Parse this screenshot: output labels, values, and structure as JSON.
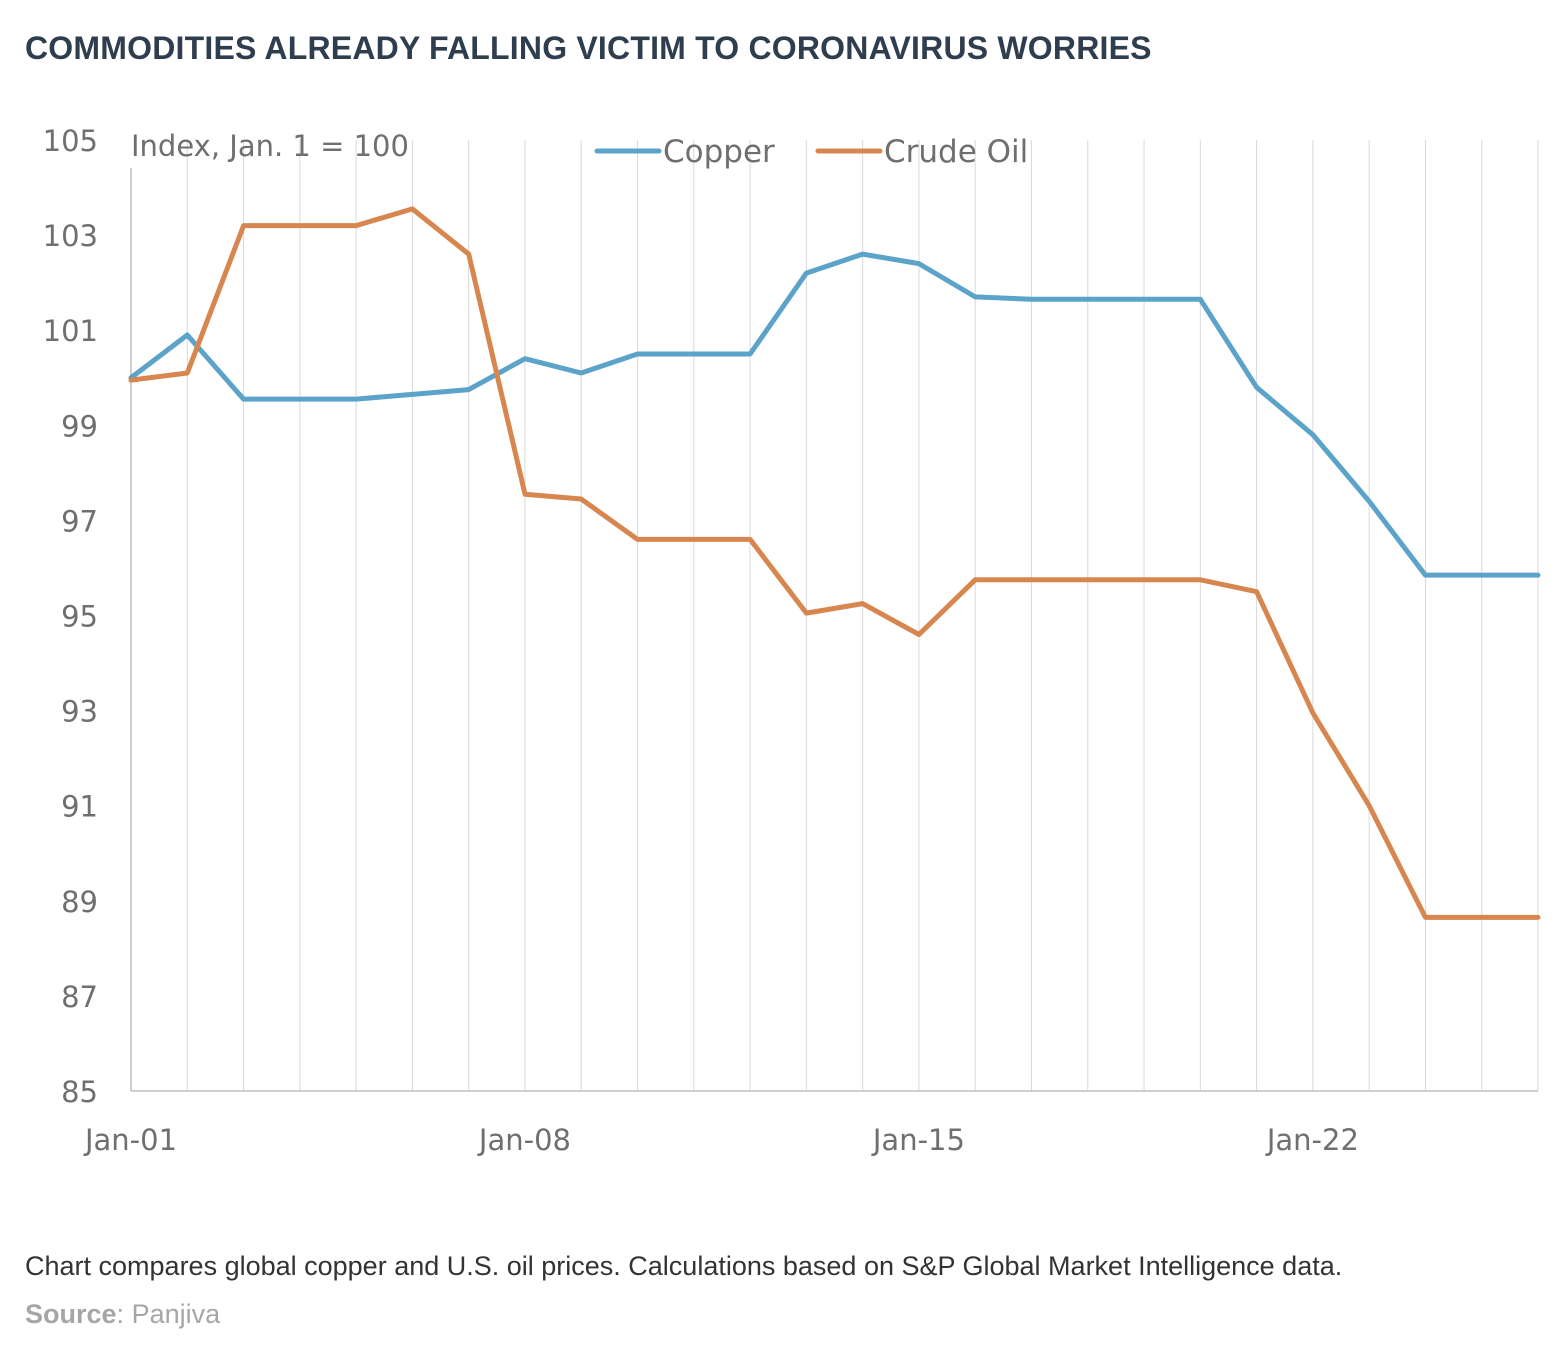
{
  "title": "COMMODITIES ALREADY FALLING VICTIM TO CORONAVIRUS WORRIES",
  "caption": "Chart compares global copper and U.S. oil prices. Calculations based on S&P Global Market Intelligence data.",
  "source": {
    "label": "Source",
    "separator": ": ",
    "value": "Panjiva"
  },
  "colors": {
    "copper": "#5ba3c9",
    "crude_oil": "#d8864f",
    "grid": "#d9d9d9",
    "axis": "#bfbfbf",
    "title": "#2f3e4e"
  },
  "chart_data": {
    "type": "line",
    "unit_label": "Index, Jan. 1 = 100",
    "ylim": [
      85,
      105
    ],
    "yticks": [
      85,
      87,
      89,
      91,
      93,
      95,
      97,
      99,
      101,
      103,
      105
    ],
    "x": [
      1,
      2,
      3,
      4,
      5,
      6,
      7,
      8,
      9,
      10,
      11,
      12,
      13,
      14,
      15,
      16,
      17,
      18,
      19,
      20,
      21,
      22,
      23,
      24,
      25,
      26
    ],
    "x_tick_labels": [
      {
        "day": 1,
        "label": "Jan-01"
      },
      {
        "day": 8,
        "label": "Jan-08"
      },
      {
        "day": 15,
        "label": "Jan-15"
      },
      {
        "day": 22,
        "label": "Jan-22"
      }
    ],
    "xlim": [
      1,
      26
    ],
    "grid": "vertical",
    "legend_position": "top",
    "series": [
      {
        "name": "Copper",
        "color": "#5ba3c9",
        "values": [
          100.0,
          100.9,
          99.55,
          99.55,
          99.55,
          99.65,
          99.75,
          100.4,
          100.1,
          100.5,
          100.5,
          100.5,
          102.2,
          102.6,
          102.4,
          101.7,
          101.65,
          101.65,
          101.65,
          101.65,
          99.8,
          98.8,
          97.4,
          95.85,
          95.85,
          95.85
        ]
      },
      {
        "name": "Crude Oil",
        "color": "#d8864f",
        "values": [
          99.95,
          100.1,
          103.2,
          103.2,
          103.2,
          103.55,
          102.6,
          97.55,
          97.45,
          96.6,
          96.6,
          96.6,
          95.05,
          95.25,
          94.6,
          95.75,
          95.75,
          95.75,
          95.75,
          95.75,
          95.5,
          92.95,
          91.0,
          88.65,
          88.65,
          88.65
        ]
      }
    ]
  }
}
